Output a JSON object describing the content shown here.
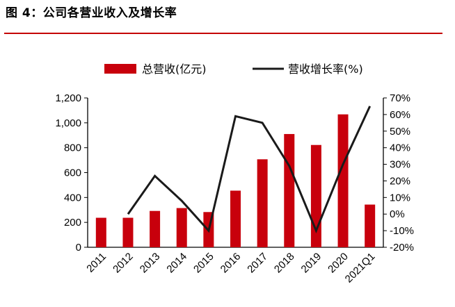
{
  "figure_title": "图 4：公司各营业收入及增长率",
  "colors": {
    "bar": "#c8000c",
    "line": "#1a1a1a",
    "title_rule": "#c40000"
  },
  "chart_data": {
    "type": "bar+line",
    "title": "",
    "categories": [
      "2011",
      "2012",
      "2013",
      "2014",
      "2015",
      "2016",
      "2017",
      "2018",
      "2019",
      "2020",
      "2021Q1"
    ],
    "series": [
      {
        "name": "总营收(亿元)",
        "type": "bar",
        "axis": "left",
        "values": [
          237,
          237,
          292,
          315,
          283,
          455,
          707,
          910,
          822,
          1068,
          343
        ]
      },
      {
        "name": "营收增长率(%)",
        "type": "line",
        "axis": "right",
        "values": [
          null,
          0,
          23,
          8,
          -10,
          59,
          55,
          29,
          -10,
          30,
          65
        ]
      }
    ],
    "left_axis": {
      "ylim": [
        0,
        1200
      ],
      "ticks": [
        "0",
        "200",
        "400",
        "600",
        "800",
        "1,000",
        "1,200"
      ]
    },
    "right_axis": {
      "ylim": [
        -20,
        70
      ],
      "ticks": [
        "-20%",
        "-10%",
        "0%",
        "10%",
        "20%",
        "30%",
        "40%",
        "50%",
        "60%",
        "70%"
      ]
    },
    "legend": {
      "position": "top-center",
      "items": [
        "总营收(亿元)",
        "营收增长率(%)"
      ]
    },
    "grid": false
  }
}
